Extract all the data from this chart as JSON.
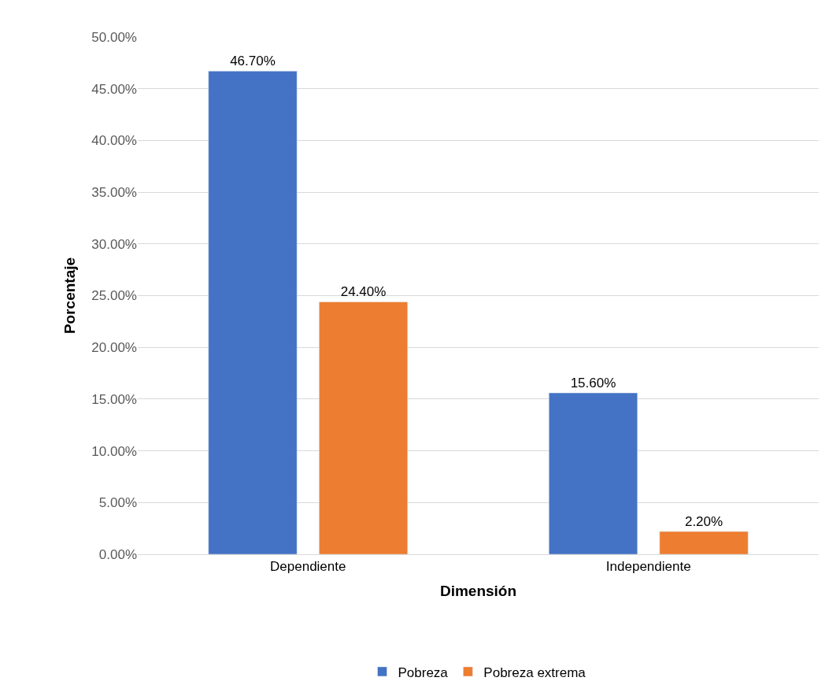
{
  "chart_data": {
    "type": "bar",
    "xlabel": "Dimensión",
    "ylabel": "Porcentaje",
    "categories": [
      "Dependiente",
      "Independiente"
    ],
    "series": [
      {
        "name": "Pobreza",
        "color": "#4472c4",
        "values": [
          46.7,
          15.6
        ],
        "value_labels": [
          "46.70%",
          "15.60%"
        ]
      },
      {
        "name": "Pobreza extrema",
        "color": "#ed7d31",
        "values": [
          24.4,
          2.2
        ],
        "value_labels": [
          "24.40%",
          "2.20%"
        ]
      }
    ],
    "ylim": [
      0,
      50
    ],
    "yticks": [
      {
        "value": 0,
        "label": "0.00%"
      },
      {
        "value": 5,
        "label": "5.00%"
      },
      {
        "value": 10,
        "label": "10.00%"
      },
      {
        "value": 15,
        "label": "15.00%"
      },
      {
        "value": 20,
        "label": "20.00%"
      },
      {
        "value": 25,
        "label": "25.00%"
      },
      {
        "value": 30,
        "label": "30.00%"
      },
      {
        "value": 35,
        "label": "35.00%"
      },
      {
        "value": 40,
        "label": "40.00%"
      },
      {
        "value": 45,
        "label": "45.00%"
      },
      {
        "value": 50,
        "label": "50.00%"
      }
    ],
    "grid": "y",
    "legend": "bottom"
  }
}
